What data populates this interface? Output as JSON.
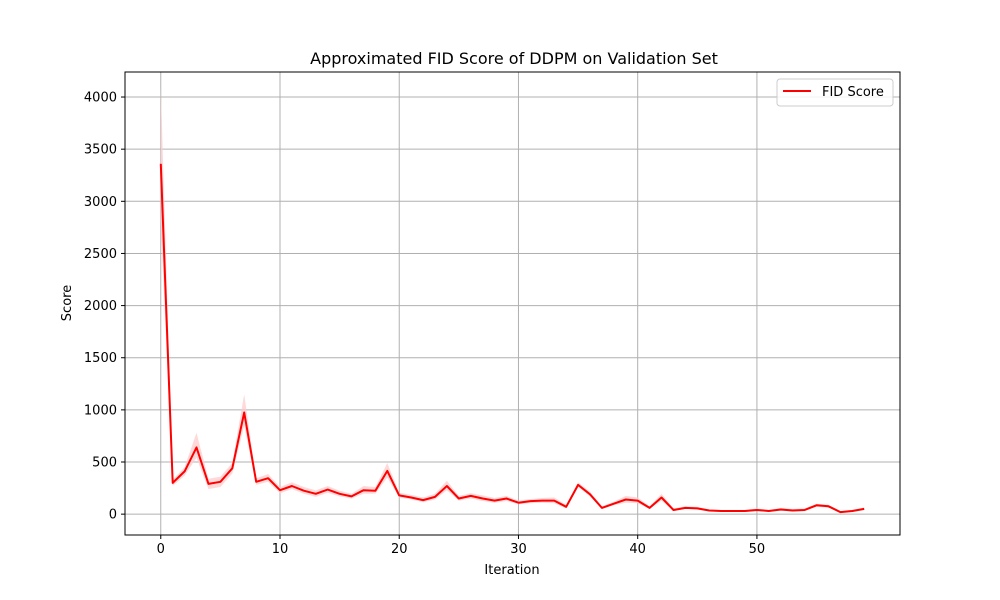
{
  "chart_data": {
    "type": "line",
    "title": "Approximated FID Score of DDPM on Validation Set",
    "xlabel": "Iteration",
    "ylabel": "Score",
    "xlim": [
      -3,
      62
    ],
    "ylim": [
      -200,
      4240
    ],
    "xticks": [
      0,
      10,
      20,
      30,
      40,
      50
    ],
    "yticks": [
      0,
      500,
      1000,
      1500,
      2000,
      2500,
      3000,
      3500,
      4000
    ],
    "grid": true,
    "legend_position": "top-right",
    "series": [
      {
        "name": "FID Score",
        "color": "#ff0000",
        "band_color": "#ffcccc",
        "x": [
          0,
          1,
          2,
          3,
          4,
          5,
          6,
          7,
          8,
          9,
          10,
          11,
          12,
          13,
          14,
          15,
          16,
          17,
          18,
          19,
          20,
          21,
          22,
          23,
          24,
          25,
          26,
          27,
          28,
          29,
          30,
          31,
          32,
          33,
          34,
          35,
          36,
          37,
          38,
          39,
          40,
          41,
          42,
          43,
          44,
          45,
          46,
          47,
          48,
          49,
          50,
          51,
          52,
          53,
          54,
          55,
          56,
          57,
          58,
          59
        ],
        "y": [
          3360,
          300,
          410,
          640,
          290,
          310,
          440,
          975,
          310,
          345,
          230,
          270,
          225,
          195,
          235,
          195,
          170,
          230,
          225,
          415,
          180,
          160,
          135,
          165,
          270,
          150,
          175,
          150,
          130,
          150,
          110,
          125,
          130,
          130,
          70,
          280,
          190,
          60,
          100,
          140,
          130,
          60,
          160,
          40,
          60,
          55,
          35,
          30,
          30,
          30,
          40,
          30,
          45,
          35,
          40,
          85,
          75,
          20,
          30,
          50
        ],
        "lower": [
          2800,
          270,
          370,
          540,
          240,
          260,
          390,
          850,
          280,
          310,
          200,
          240,
          195,
          165,
          205,
          170,
          150,
          195,
          195,
          350,
          160,
          140,
          115,
          140,
          230,
          130,
          150,
          125,
          110,
          125,
          95,
          105,
          110,
          105,
          55,
          260,
          170,
          50,
          85,
          110,
          105,
          50,
          130,
          30,
          50,
          45,
          28,
          22,
          22,
          22,
          30,
          22,
          35,
          25,
          30,
          70,
          62,
          15,
          22,
          40
        ],
        "upper": [
          4100,
          330,
          450,
          780,
          340,
          360,
          490,
          1150,
          345,
          385,
          260,
          305,
          260,
          230,
          270,
          225,
          195,
          270,
          260,
          490,
          205,
          185,
          160,
          195,
          320,
          175,
          200,
          180,
          155,
          175,
          130,
          145,
          155,
          160,
          90,
          305,
          215,
          75,
          120,
          175,
          160,
          75,
          195,
          55,
          75,
          70,
          45,
          40,
          40,
          40,
          55,
          40,
          60,
          50,
          55,
          100,
          90,
          30,
          40,
          65
        ]
      }
    ]
  }
}
